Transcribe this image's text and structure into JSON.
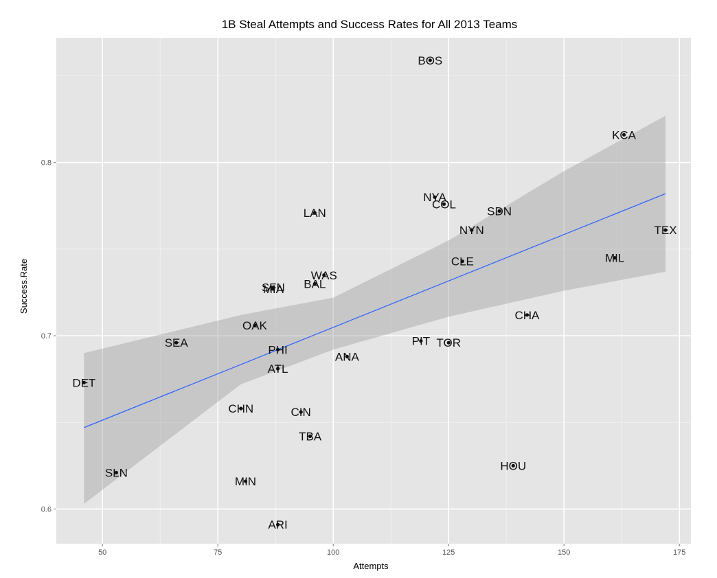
{
  "chart_data": {
    "type": "scatter",
    "title": "1B Steal Attempts and Success Rates for All 2013 Teams",
    "xlabel": "Attempts",
    "ylabel": "Success.Rate",
    "xlim": [
      40,
      177.5
    ],
    "ylim": [
      0.58,
      0.872
    ],
    "xticks": [
      50,
      75,
      100,
      125,
      150,
      175
    ],
    "yticks": [
      0.6,
      0.7,
      0.8
    ],
    "ytick_labels": [
      "0.6",
      "0.7",
      "0.8"
    ],
    "grid": true,
    "points": [
      {
        "label": "BOS",
        "x": 121,
        "y": 0.859
      },
      {
        "label": "KCA",
        "x": 163,
        "y": 0.816
      },
      {
        "label": "NYA",
        "x": 122,
        "y": 0.78
      },
      {
        "label": "COL",
        "x": 124,
        "y": 0.776
      },
      {
        "label": "SDN",
        "x": 136,
        "y": 0.772
      },
      {
        "label": "LAN",
        "x": 96,
        "y": 0.771
      },
      {
        "label": "NYN",
        "x": 130,
        "y": 0.761
      },
      {
        "label": "TEX",
        "x": 172,
        "y": 0.761
      },
      {
        "label": "MIL",
        "x": 161,
        "y": 0.745
      },
      {
        "label": "CLE",
        "x": 128,
        "y": 0.743
      },
      {
        "label": "WAS",
        "x": 98,
        "y": 0.735
      },
      {
        "label": "BAL",
        "x": 96,
        "y": 0.73
      },
      {
        "label": "SFN",
        "x": 87,
        "y": 0.728
      },
      {
        "label": "MIA",
        "x": 87,
        "y": 0.727
      },
      {
        "label": "CHA",
        "x": 142,
        "y": 0.712
      },
      {
        "label": "OAK",
        "x": 83,
        "y": 0.706
      },
      {
        "label": "SEA",
        "x": 66,
        "y": 0.696
      },
      {
        "label": "PIT",
        "x": 119,
        "y": 0.697
      },
      {
        "label": "TOR",
        "x": 125,
        "y": 0.696
      },
      {
        "label": "PHI",
        "x": 88,
        "y": 0.692
      },
      {
        "label": "ANA",
        "x": 103,
        "y": 0.688
      },
      {
        "label": "ATL",
        "x": 88,
        "y": 0.681
      },
      {
        "label": "DET",
        "x": 46,
        "y": 0.673
      },
      {
        "label": "CHN",
        "x": 80,
        "y": 0.658
      },
      {
        "label": "CIN",
        "x": 93,
        "y": 0.656
      },
      {
        "label": "TBA",
        "x": 95,
        "y": 0.642
      },
      {
        "label": "HOU",
        "x": 139,
        "y": 0.625
      },
      {
        "label": "SLN",
        "x": 53,
        "y": 0.621
      },
      {
        "label": "MIN",
        "x": 81,
        "y": 0.616
      },
      {
        "label": "ARI",
        "x": 88,
        "y": 0.591
      }
    ],
    "trend": {
      "x": [
        46,
        172
      ],
      "y": [
        0.647,
        0.782
      ],
      "color": "#3366FF"
    },
    "confidence_band": {
      "x": [
        46,
        80,
        100,
        125,
        150,
        172
      ],
      "lower": [
        0.603,
        0.672,
        0.692,
        0.711,
        0.726,
        0.737
      ],
      "upper": [
        0.69,
        0.712,
        0.722,
        0.755,
        0.795,
        0.827
      ]
    }
  }
}
